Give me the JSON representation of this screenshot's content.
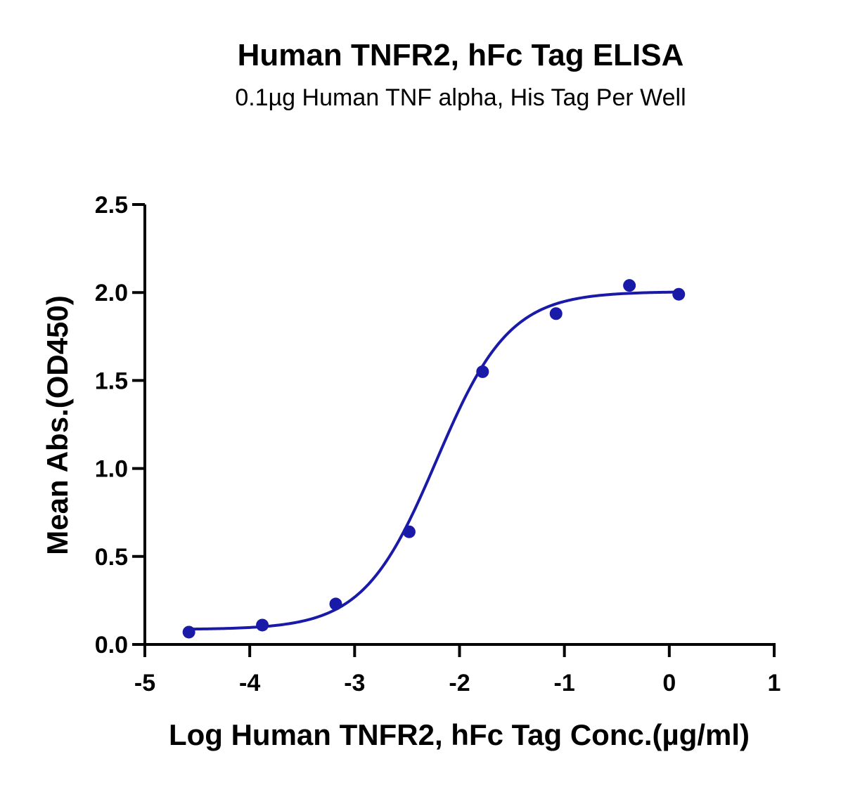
{
  "chart_data": {
    "type": "scatter",
    "title": "Human TNFR2, hFc Tag ELISA",
    "subtitle": "0.1µg Human TNF alpha, His Tag Per Well",
    "xlabel": "Log Human TNFR2, hFc Tag Conc.(µg/ml)",
    "ylabel": "Mean Abs.(OD450)",
    "xlim": [
      -5,
      1
    ],
    "ylim": [
      0,
      2.5
    ],
    "xticks": [
      -5,
      -4,
      -3,
      -2,
      -1,
      0,
      1
    ],
    "yticks": [
      0.0,
      0.5,
      1.0,
      1.5,
      2.0,
      2.5
    ],
    "xtick_labels": [
      "-5",
      "-4",
      "-3",
      "-2",
      "-1",
      "0",
      "1"
    ],
    "ytick_labels": [
      "0.0",
      "0.5",
      "1.0",
      "1.5",
      "2.0",
      "2.5"
    ],
    "grid": false,
    "legend": "none",
    "color": "#1a1aa8",
    "series": [
      {
        "x": [
          -4.58,
          -3.88,
          -3.18,
          -2.48,
          -1.78,
          -1.08,
          -0.38,
          0.09
        ],
        "y": [
          0.07,
          0.11,
          0.23,
          0.64,
          1.55,
          1.88,
          2.04,
          1.99
        ]
      }
    ],
    "fit": {
      "type": "4PL",
      "bottom": 0.085,
      "top": 2.005,
      "logEC50": -2.22,
      "hillslope": 1.25,
      "x_range": [
        -4.58,
        0.09
      ]
    }
  }
}
